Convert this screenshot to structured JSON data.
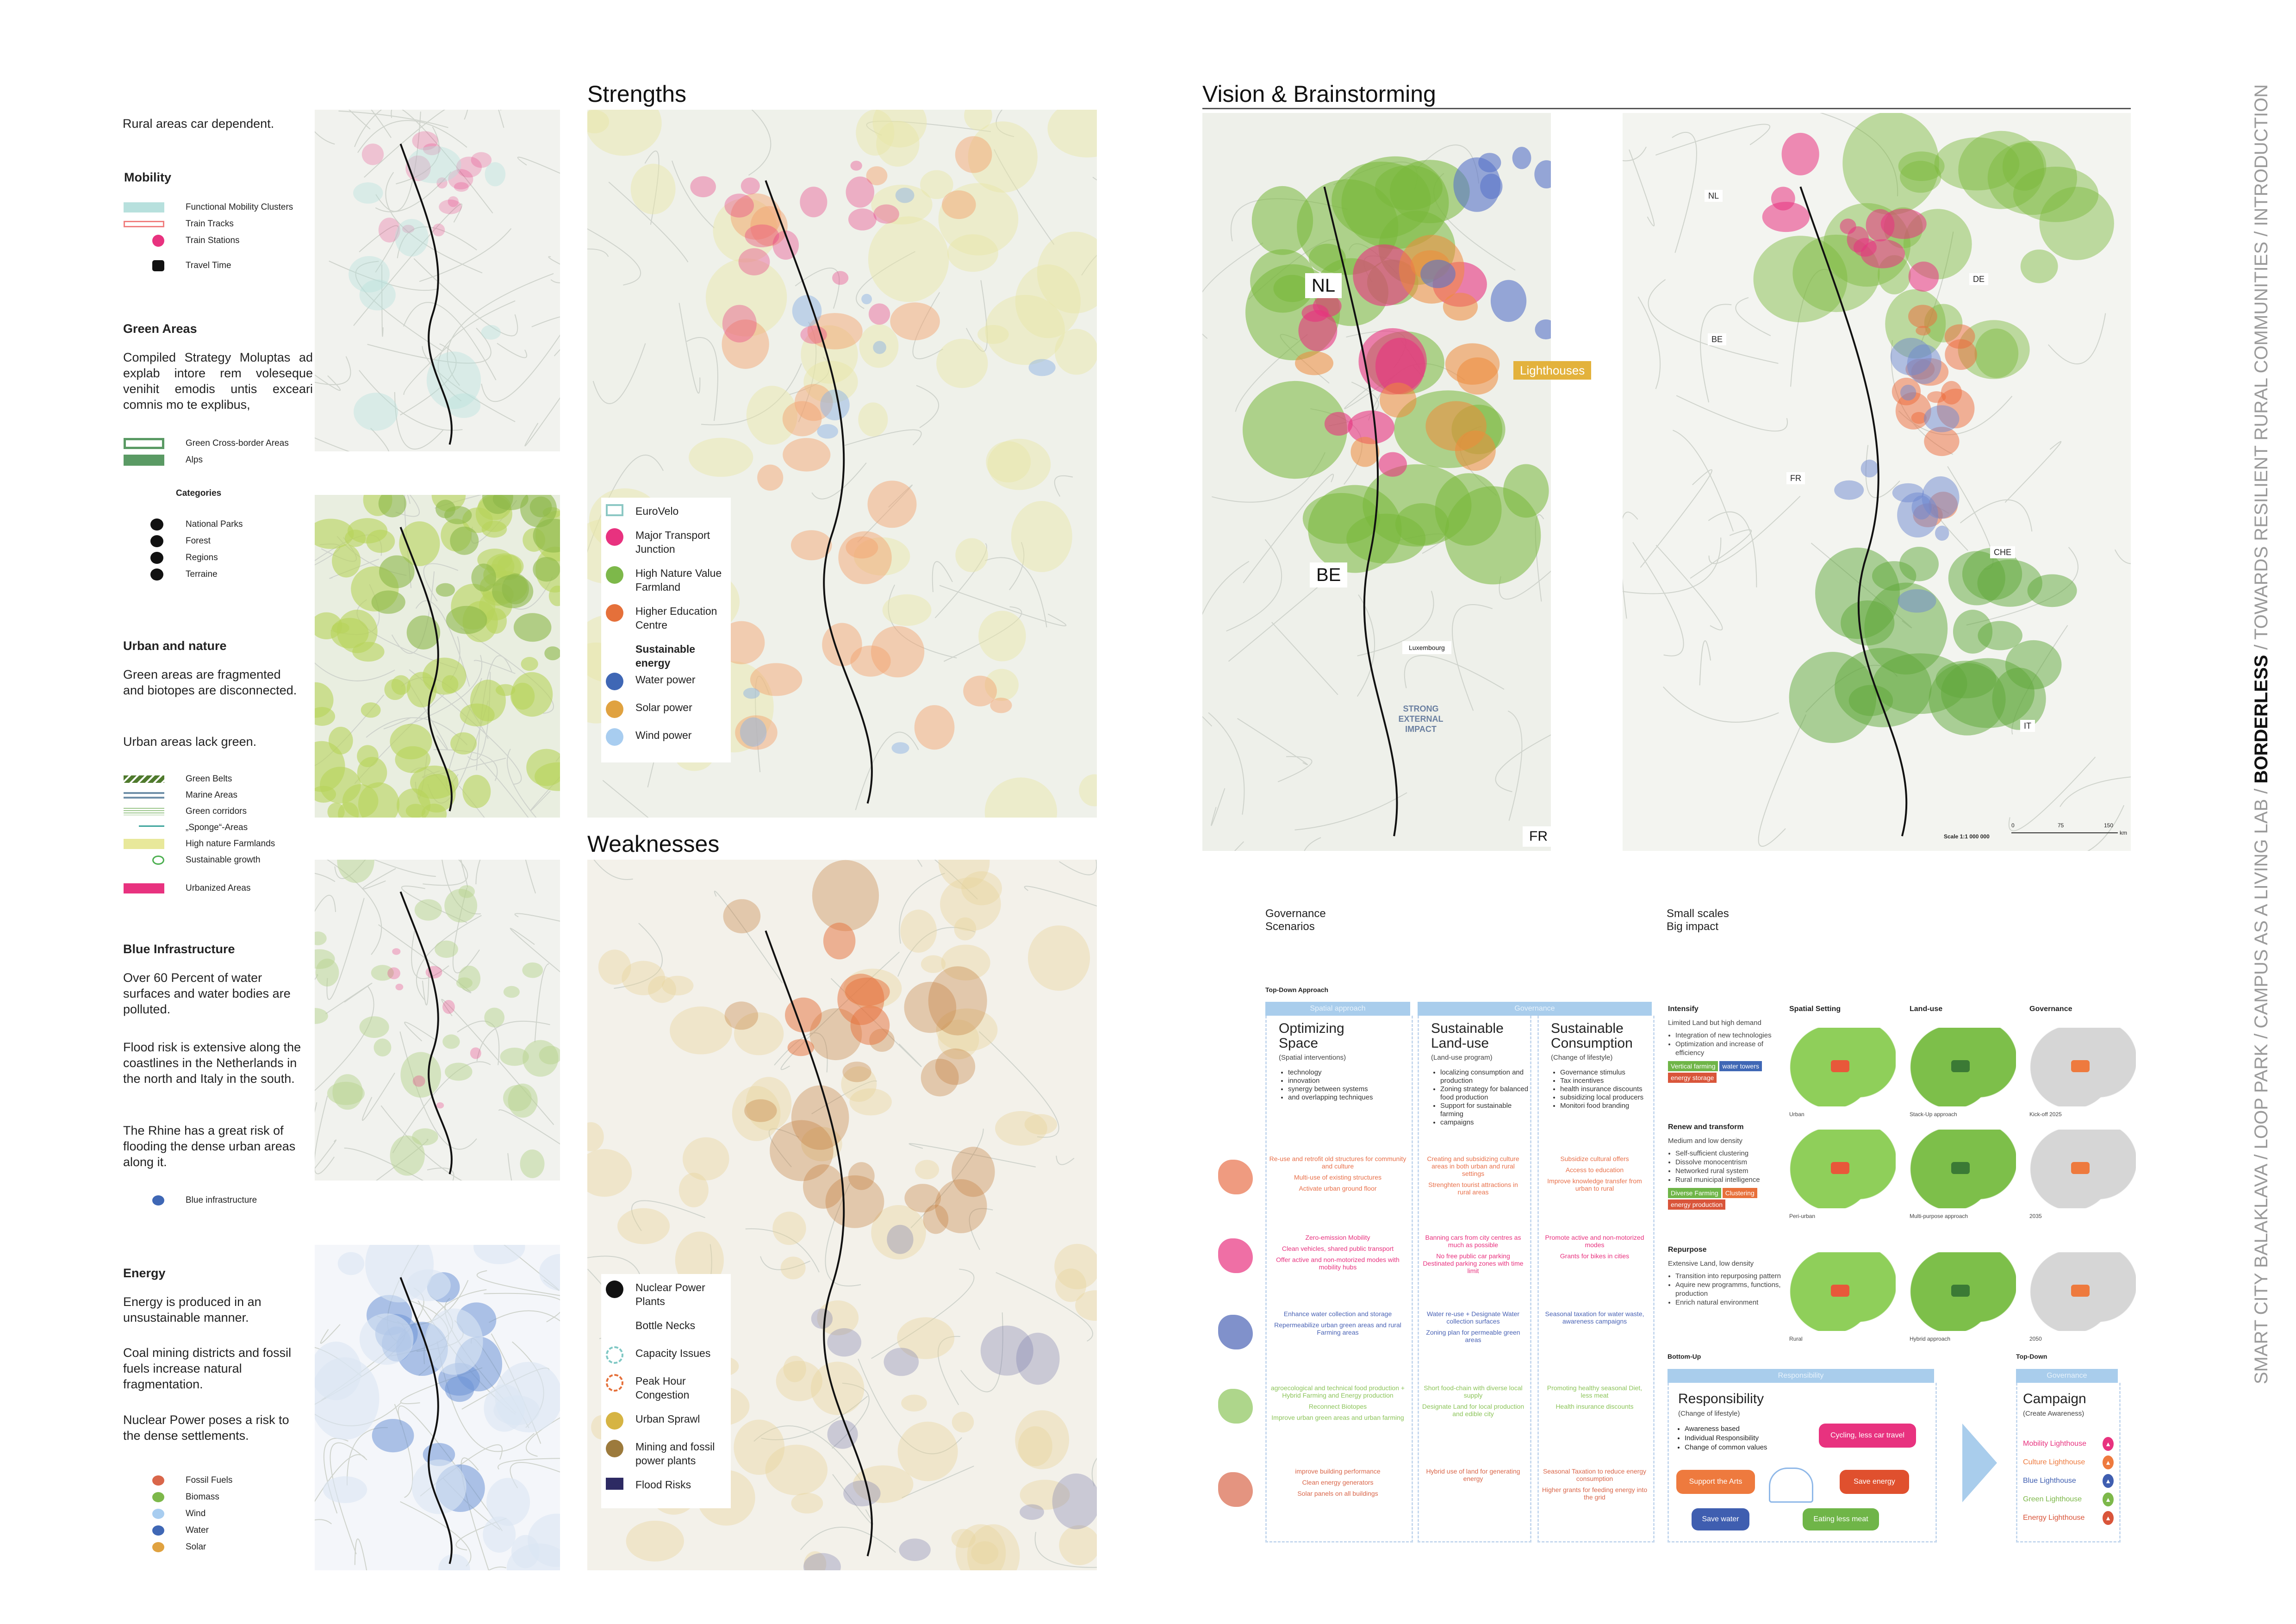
{
  "sidebar": {
    "intro": "Rural areas car dependent.",
    "mobility": {
      "title": "Mobility",
      "legend": [
        {
          "label": "Functional Mobility Clusters",
          "icon": "mobility-cluster-swatch",
          "color": "#b7e0dd"
        },
        {
          "label": "Train Tracks",
          "icon": "train-track-swatch",
          "color": "#f08080"
        },
        {
          "label": "Train Stations",
          "icon": "train-station-dot",
          "color": "#e8327f"
        },
        {
          "label": "Travel Time",
          "icon": "train-icon",
          "color": "#111111"
        }
      ]
    },
    "green": {
      "title": "Green Areas",
      "text": "Compiled Strategy Moluptas ad explab intore rem volesequе venihit emodis untis exceari comnis mo te explibus,",
      "legend": [
        {
          "label": "Green Cross-border Areas",
          "color": "#5a9a64"
        },
        {
          "label": "Alps",
          "color": "#5a9a64"
        }
      ],
      "categories_title": "Categories",
      "categories": [
        {
          "label": "National Parks",
          "icon": "signpost-icon"
        },
        {
          "label": "Forest",
          "icon": "forest-icon"
        },
        {
          "label": "Regions",
          "icon": "location-pin-icon"
        },
        {
          "label": "Terraine",
          "icon": "mountain-icon"
        }
      ]
    },
    "urban": {
      "title": "Urban and nature",
      "text1": "Green areas are fragmented and biotopes are disconnected.",
      "text2": "Urban areas lack green.",
      "legend": [
        {
          "label": "Green Belts",
          "color": "#4f7a2d"
        },
        {
          "label": "Marine Areas",
          "color": "#6f8fa8"
        },
        {
          "label": "Green corridors",
          "color": "#9cc68c"
        },
        {
          "label": "„Sponge“-Areas",
          "color": "#3aa39a"
        },
        {
          "label": "High nature Farmlands",
          "color": "#e8e89a"
        },
        {
          "label": "Sustainable growth",
          "color": "#4caf50"
        },
        {
          "label": "Urbanized Areas",
          "color": "#e8327f"
        }
      ]
    },
    "blue": {
      "title": "Blue Infrastructure",
      "text1": "Over 60 Percent of water surfaces and water bodies are polluted.",
      "text2": "Flood risk is extensive along the coastlines in the Netherlands in the north and Italy in the south.",
      "text3": "The Rhine has a great risk of flooding the dense urban areas along it.",
      "legend": [
        {
          "label": "Blue infrastructure",
          "icon": "water-drop-icon",
          "color": "#3f67b5"
        }
      ]
    },
    "energy": {
      "title": "Energy",
      "text1": "Energy is produced in an unsustainable manner.",
      "text2": "Coal mining districts and fossil fuels increase natural fragmentation.",
      "text3": "Nuclear Power poses a risk to the dense settlements.",
      "legend": [
        {
          "label": "Fossil Fuels",
          "icon": "mine-cart-icon",
          "color": "#d9664a"
        },
        {
          "label": "Biomass",
          "icon": "biomass-icon",
          "color": "#7db84a"
        },
        {
          "label": "Wind",
          "icon": "wind-turbine-icon",
          "color": "#a8cdf0"
        },
        {
          "label": "Water",
          "icon": "water-drop-icon",
          "color": "#3f67b5"
        },
        {
          "label": "Solar",
          "icon": "sun-icon",
          "color": "#e0a240"
        }
      ]
    }
  },
  "strengths": {
    "title": "Strengths",
    "legend": [
      {
        "label": "EuroVelo",
        "icon": "eurovelo-swatch",
        "color": "#8cc8c4"
      },
      {
        "label": "Major Transport Junction",
        "icon": "junction-icon",
        "color": "#e8327f"
      },
      {
        "label": "High Nature Value Farmland",
        "icon": "sprout-icon",
        "color": "#7db84a"
      },
      {
        "label": "Higher Education Centre",
        "icon": "graduation-cap-icon",
        "color": "#e5703a"
      }
    ],
    "energy_title": "Sustainable energy",
    "energy_legend": [
      {
        "label": "Water power",
        "icon": "water-drop-icon",
        "color": "#3f67b5"
      },
      {
        "label": "Solar power",
        "icon": "sun-icon",
        "color": "#e0a240"
      },
      {
        "label": "Wind power",
        "icon": "wind-turbine-icon",
        "color": "#a8cdf0"
      }
    ]
  },
  "weaknesses": {
    "title": "Weaknesses",
    "legend": [
      {
        "label": "Nuclear Power Plants",
        "icon": "nuclear-plant-icon",
        "color": "#111111"
      },
      {
        "label": "Bottle Necks",
        "icon": "",
        "color": ""
      },
      {
        "label": "Capacity Issues",
        "icon": "capacity-icon",
        "color": "#7fc8c4"
      },
      {
        "label": "Peak Hour Congestion",
        "icon": "congestion-icon",
        "color": "#e5703a"
      },
      {
        "label": "Urban Sprawl",
        "icon": "sprawl-icon",
        "color": "#d6b443"
      },
      {
        "label": "Mining and fossil power plants",
        "icon": "mine-cart-icon",
        "color": "#9c7a3c"
      },
      {
        "label": "Flood Risks",
        "icon": "flood-swatch",
        "color": "#2d2a63"
      }
    ]
  },
  "vision": {
    "title": "Vision & Brainstorming",
    "map1_labels": {
      "nl": "NL",
      "be": "BE",
      "fr": "FR",
      "lighthouses": "Lighthouses",
      "impact": "STRONG EXTERNAL IMPACT",
      "luxembourg": "Luxembourg"
    },
    "map2_labels": {
      "nl": "NL",
      "be": "BE",
      "de": "DE",
      "fr": "FR",
      "che": "CHE",
      "it": "IT",
      "scale": "Scale 1:1 000 000",
      "ticks": [
        "0",
        "75",
        "150"
      ],
      "unit": "km"
    }
  },
  "governance": {
    "title": "Governance Scenarios",
    "approach": "Top-Down Approach",
    "heads": [
      "Spatial approach",
      "Governance"
    ],
    "columns": [
      {
        "title": "Optimizing Space",
        "sub": "(Spatial interventions)",
        "bullets": [
          "technology",
          "innovation",
          "synergy between systems",
          "and overlapping techniques"
        ],
        "rows": [
          [
            "Re-use and retrofit old structures for community and culture",
            "Multi-use of existing structures",
            "Activate urban ground floor"
          ],
          [
            "Zero-emission Mobility",
            "Clean vehicles, shared public transport",
            "Offer active and non-motorized modes with mobility hubs"
          ],
          [
            "Enhance water collection and storage",
            "Repermeabilize urban green areas and rural Farming areas"
          ],
          [
            "agroecological and technical food production + Hybrid Farming and Energy production",
            "Reconnect Biotopes",
            "Improve urban green areas and urban farming"
          ],
          [
            "improve building performance",
            "Clean energy generators",
            "Solar panels on all buildings"
          ]
        ]
      },
      {
        "title": "Sustainable Land-use",
        "sub": "(Land-use program)",
        "bullets": [
          "localizing consumption and production",
          "Zoning strategy for balanced food production",
          "Support for sustainable farming",
          "campaigns"
        ],
        "rows": [
          [
            "Creating and subsidizing culture areas in both urban and rural settings",
            "Strenghten tourist attractions in rural areas"
          ],
          [
            "Banning cars from city centres as much as possible",
            "No free public car parking Destinated parking zones with time limit"
          ],
          [
            "Water re-use + Designate Water collection surfaces",
            "Zoning plan for permeable green areas"
          ],
          [
            "Short food-chain with diverse local supply",
            "Designate Land for local production and edible city"
          ],
          [
            "Hybrid use of land for generating energy"
          ]
        ]
      },
      {
        "title": "Sustainable Consumption",
        "sub": "(Change of lifestyle)",
        "bullets": [
          "Governance stimulus",
          "Tax incentives",
          "health insurance discounts",
          "subsidizing local producers",
          "Monitori food branding"
        ],
        "rows": [
          [
            "Subsidize cultural offers",
            "Access to education",
            "Improve knowledge transfer from urban to rural"
          ],
          [
            "Promote active and non-motorized modes",
            "Grants for bikes in cities"
          ],
          [
            "Seasonal taxation for water waste, awareness campaigns"
          ],
          [
            "Promoting healthy seasonal Diet, less meat",
            "Health insurance discounts"
          ],
          [
            "Seasonal Taxation to reduce energy consumption",
            "Higher grants for feeding energy into the grid"
          ]
        ]
      }
    ],
    "row_colors": [
      "#e8704a",
      "#e8327f",
      "#4a63b5",
      "#8cc45a",
      "#d9664a"
    ],
    "row_icons": [
      "culture-icon",
      "mobility-icon",
      "water-icon",
      "green-icon",
      "energy-icon"
    ]
  },
  "small_scales": {
    "title": "Small scales Big impact",
    "col_heads": [
      "Spatial Setting",
      "Land-use",
      "Governance"
    ],
    "rows": [
      {
        "title": "Intensify",
        "sub": "Limited Land but high demand",
        "bullets": [
          "Integration of new technologies",
          "Optimization and increase of efficiency"
        ],
        "tags": [
          {
            "label": "Vertical farming",
            "color": "#6fb548"
          },
          {
            "label": "water towers",
            "color": "#3f67b5"
          },
          {
            "label": "energy storage",
            "color": "#d9553a"
          }
        ],
        "captions": [
          "Urban",
          "Stack-Up approach",
          "Kick-off 2025"
        ]
      },
      {
        "title": "Renew and transform",
        "sub": "Medium and low density",
        "bullets": [
          "Self-sufficient clustering",
          "Dissolve monocentrism",
          "Networked rural system",
          "Rural municipal intelligence"
        ],
        "tags": [
          {
            "label": "Diverse Farming",
            "color": "#6fb548"
          },
          {
            "label": "Clustering",
            "color": "#e8703a"
          },
          {
            "label": "energy production",
            "color": "#d9553a"
          }
        ],
        "captions": [
          "Peri-urban",
          "Multi-purpose approach",
          "2035"
        ]
      },
      {
        "title": "Repurpose",
        "sub": "Extensive Land, low density",
        "bullets": [
          "Transition into repurposing pattern",
          "Aquire new programms, functions, production",
          "Enrich natural environment"
        ],
        "tags": [],
        "captions": [
          "Rural",
          "Hybrid approach",
          "2050"
        ]
      }
    ],
    "bottom_up": {
      "label": "Bottom-Up",
      "head": "Responsibility",
      "title": "Responsibility",
      "sub": "(Change of lifestyle)",
      "bullets": [
        "Awareness based",
        "Individual Responsibility",
        "Change of common values"
      ],
      "bubbles": [
        {
          "label": "Cycling, less car travel",
          "color": "#e8327f"
        },
        {
          "label": "Support the Arts",
          "color": "#ee7a3e"
        },
        {
          "label": "Save energy",
          "color": "#e0502e"
        },
        {
          "label": "Save water",
          "color": "#3f5eb0"
        },
        {
          "label": "Eating less meat",
          "color": "#6fb548"
        }
      ]
    },
    "top_down": {
      "label": "Top-Down",
      "head": "Governance",
      "title": "Campaign",
      "sub": "(Create Awareness)",
      "lighthouses": [
        {
          "label": "Mobility Lighthouse",
          "color": "#e8327f"
        },
        {
          "label": "Culture Lighthouse",
          "color": "#ee7a3e"
        },
        {
          "label": "Blue Lighthouse",
          "color": "#3f5eb0"
        },
        {
          "label": "Green Lighthouse",
          "color": "#7db84a"
        },
        {
          "label": "Energy Lighthouse",
          "color": "#d9553a"
        }
      ]
    }
  },
  "vertical_title": {
    "before": "SMART CITY BALAKLAVA / LOOP PARK / CAMPUS AS A LIVING  LAB / ",
    "active": "BORDERLESS",
    "after": " / TOWARDS RESILIENT RURAL COMMUNITIES / INTRODUCTION"
  }
}
